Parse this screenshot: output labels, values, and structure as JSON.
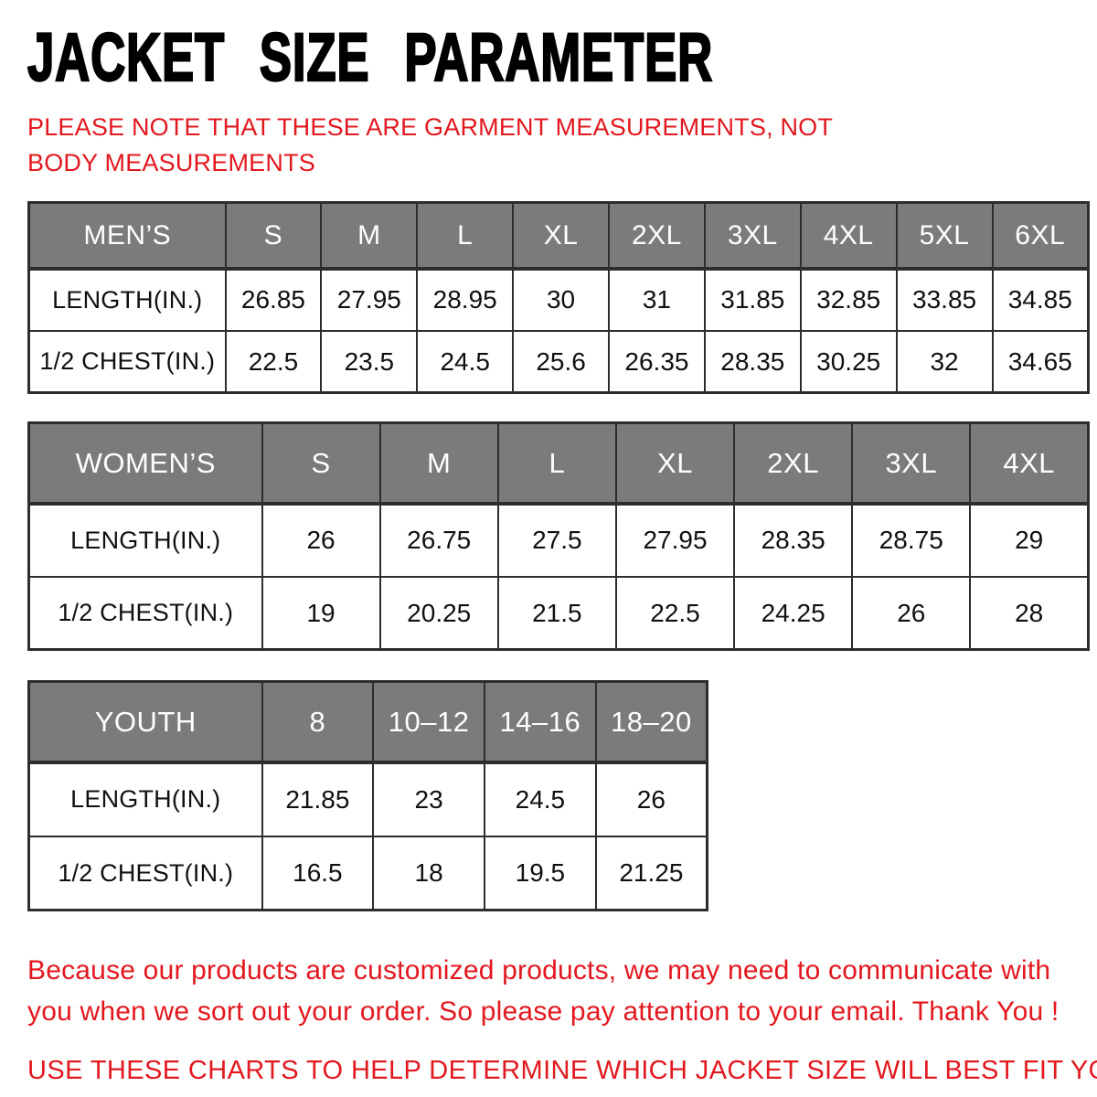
{
  "header": {
    "title": "JACKET SIZE PARAMETER",
    "note": "PLEASE NOTE THAT THESE ARE GARMENT MEASUREMENTS, NOT BODY MEASUREMENTS"
  },
  "colors": {
    "accent_red": "#e2181f",
    "table_header_gray": "#7b7b7b",
    "table_border": "#2d2d2d",
    "header_text": "#ffffff",
    "body_text": "#101010"
  },
  "tables": [
    {
      "name": "mens-size-table",
      "header": [
        "MEN’S",
        "S",
        "M",
        "L",
        "XL",
        "2XL",
        "3XL",
        "4XL",
        "5XL",
        "6XL"
      ],
      "rows": [
        [
          "LENGTH(IN.)",
          "26.85",
          "27.95",
          "28.95",
          "30",
          "31",
          "31.85",
          "32.85",
          "33.85",
          "34.85"
        ],
        [
          "1/2 CHEST(IN.)",
          "22.5",
          "23.5",
          "24.5",
          "25.6",
          "26.35",
          "28.35",
          "30.25",
          "32",
          "34.65"
        ]
      ]
    },
    {
      "name": "womens-size-table",
      "header": [
        "WOMEN’S",
        "S",
        "M",
        "L",
        "XL",
        "2XL",
        "3XL",
        "4XL"
      ],
      "rows": [
        [
          "LENGTH(IN.)",
          "26",
          "26.75",
          "27.5",
          "27.95",
          "28.35",
          "28.75",
          "29"
        ],
        [
          "1/2 CHEST(IN.)",
          "19",
          "20.25",
          "21.5",
          "22.5",
          "24.25",
          "26",
          "28"
        ]
      ]
    },
    {
      "name": "youth-size-table",
      "header": [
        "YOUTH",
        "8",
        "10–12",
        "14–16",
        "18–20"
      ],
      "rows": [
        [
          "LENGTH(IN.)",
          "21.85",
          "23",
          "24.5",
          "26"
        ],
        [
          "1/2 CHEST(IN.)",
          "16.5",
          "18",
          "19.5",
          "21.25"
        ]
      ]
    }
  ],
  "footer": {
    "paragraph": "Because our products are customized products, we may need to communicate with you when we sort out your order. So please pay attention to your email. Thank You !",
    "instruction": "USE THESE CHARTS TO HELP DETERMINE WHICH JACKET SIZE WILL BEST FIT YOU."
  }
}
